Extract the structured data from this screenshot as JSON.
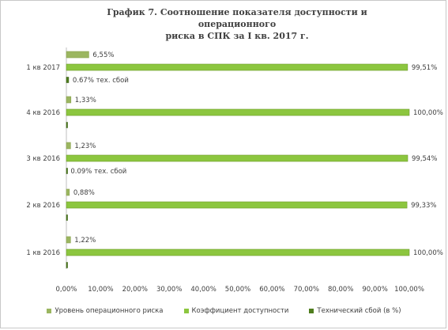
{
  "chart_data": {
    "type": "bar",
    "orientation": "horizontal",
    "title": "График 7. Соотношение показателя доступности и операционного\nриска в СПК за I кв. 2017 г.",
    "categories": [
      "1 кв 2016",
      "2 кв 2016",
      "3 кв 2016",
      "4 кв 2016",
      "1 кв 2017"
    ],
    "x_ticks": [
      "0,00%",
      "10,00%",
      "20,00%",
      "30,00%",
      "40,00%",
      "50,00%",
      "60,00%",
      "70,00%",
      "80,00%",
      "90,00%",
      "100,00%"
    ],
    "xlim": [
      0,
      100
    ],
    "legend_position": "bottom",
    "series": [
      {
        "name": "Уровень операционного риска",
        "color": "#9bb660",
        "values": [
          1.22,
          0.88,
          1.23,
          1.33,
          6.55
        ],
        "labels": [
          "1,22%",
          "0,88%",
          "1,23%",
          "1,33%",
          "6,55%"
        ]
      },
      {
        "name": "Коэффициент доступности",
        "color": "#8cc63f",
        "values": [
          100.0,
          99.33,
          99.54,
          100.0,
          99.51
        ],
        "labels": [
          "100,00%",
          "99,33%",
          "99,54%",
          "100,00%",
          "99,51%"
        ]
      },
      {
        "name": "Технический сбой (в %)",
        "color": "#4f7d1e",
        "values": [
          0,
          0.09,
          0.09,
          0,
          0.67
        ],
        "labels": [
          "",
          "",
          "0.09% тех. сбой",
          "",
          "0.67% тех. сбой"
        ]
      }
    ]
  }
}
